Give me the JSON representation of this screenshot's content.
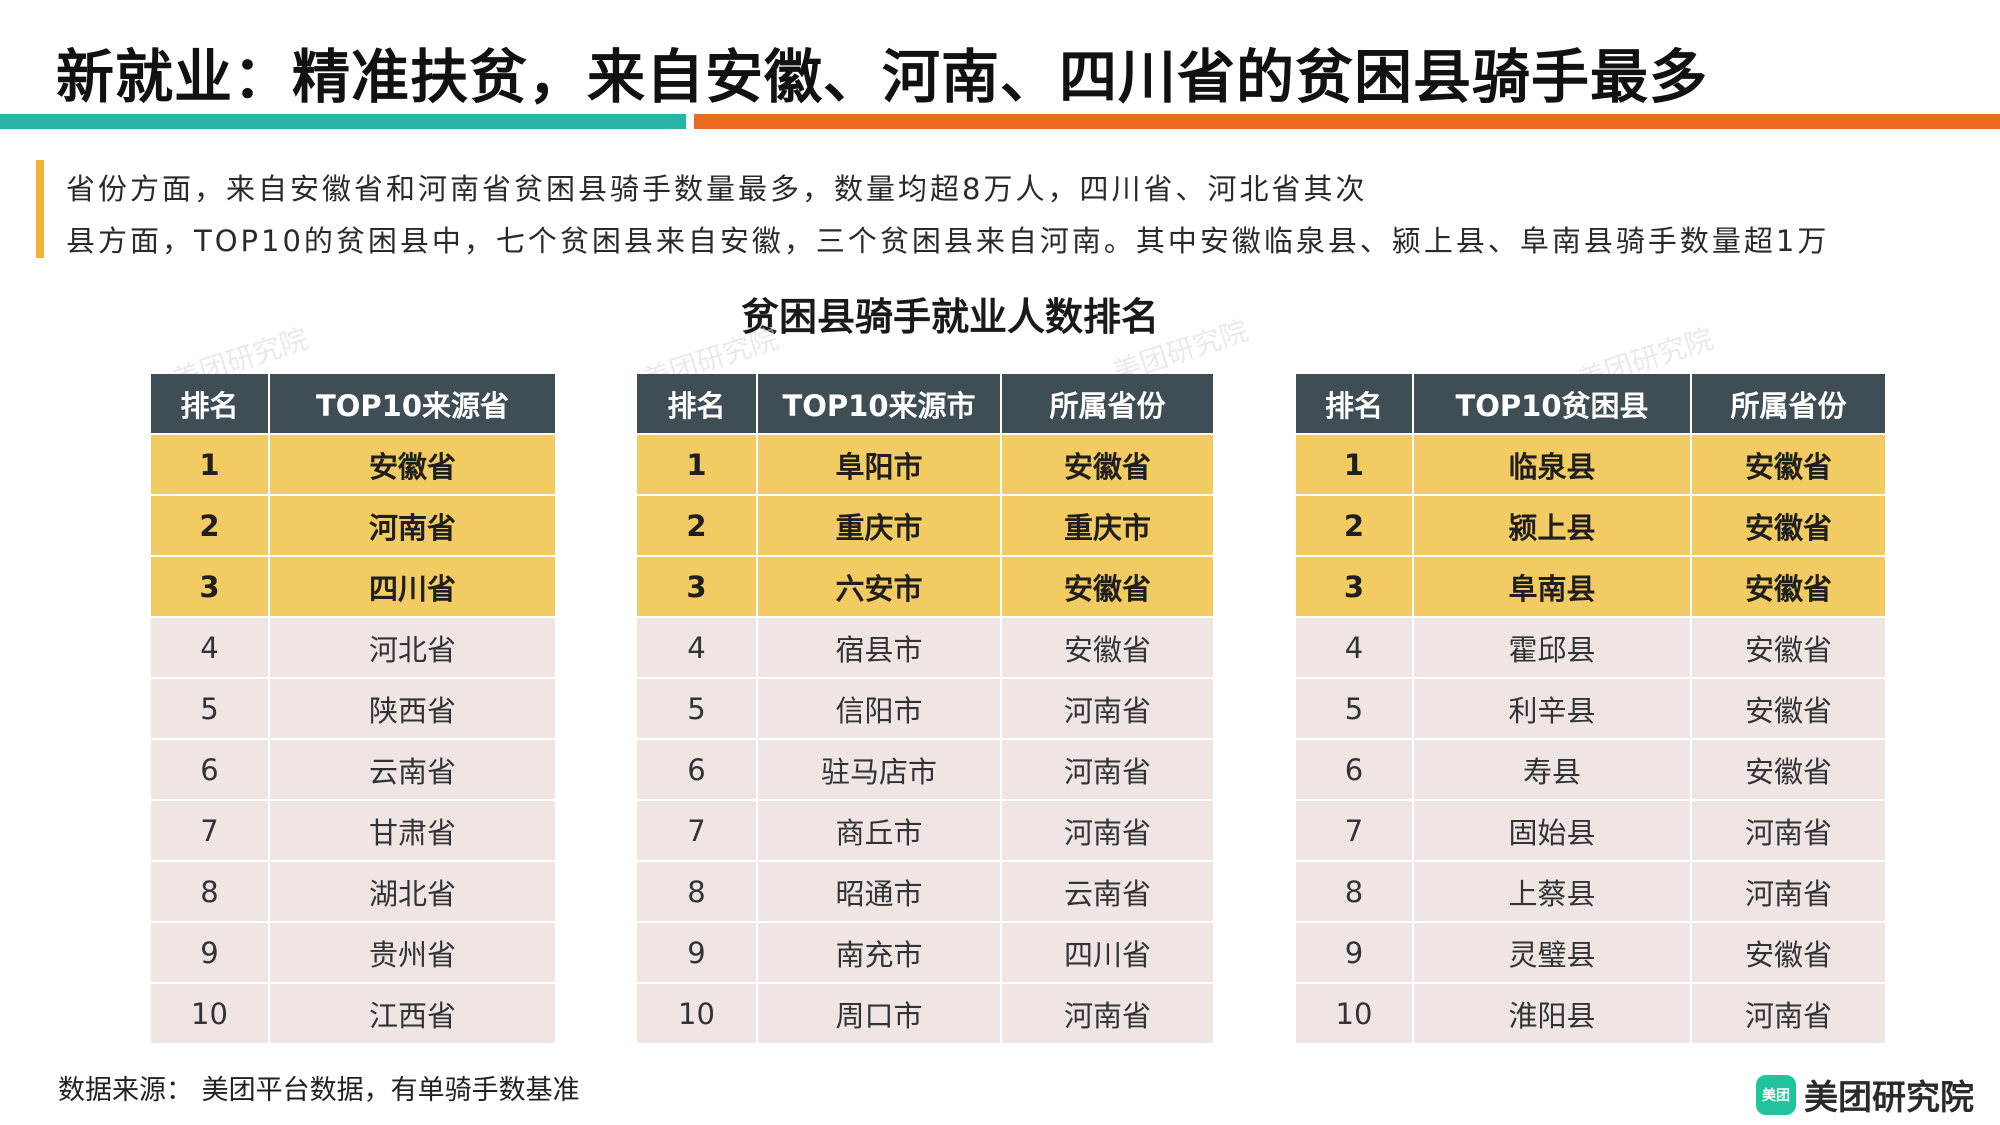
{
  "title": "新就业：精准扶贫，来自安徽、河南、四川省的贫困县骑手最多",
  "summary": {
    "line1": "省份方面，来自安徽省和河南省贫困县骑手数量最多，数量均超8万人，四川省、河北省其次",
    "line2": "县方面，TOP10的贫困县中，七个贫困县来自安徽，三个贫困县来自河南。其中安徽临泉县、颍上县、阜南县骑手数量超1万"
  },
  "section_title": "贫困县骑手就业人数排名",
  "watermark": "美团研究院",
  "table_provinces": {
    "headers": [
      "排名",
      "TOP10来源省"
    ],
    "rows": [
      [
        "1",
        "安徽省"
      ],
      [
        "2",
        "河南省"
      ],
      [
        "3",
        "四川省"
      ],
      [
        "4",
        "河北省"
      ],
      [
        "5",
        "陕西省"
      ],
      [
        "6",
        "云南省"
      ],
      [
        "7",
        "甘肃省"
      ],
      [
        "8",
        "湖北省"
      ],
      [
        "9",
        "贵州省"
      ],
      [
        "10",
        "江西省"
      ]
    ]
  },
  "table_cities": {
    "headers": [
      "排名",
      "TOP10来源市",
      "所属省份"
    ],
    "rows": [
      [
        "1",
        "阜阳市",
        "安徽省"
      ],
      [
        "2",
        "重庆市",
        "重庆市"
      ],
      [
        "3",
        "六安市",
        "安徽省"
      ],
      [
        "4",
        "宿县市",
        "安徽省"
      ],
      [
        "5",
        "信阳市",
        "河南省"
      ],
      [
        "6",
        "驻马店市",
        "河南省"
      ],
      [
        "7",
        "商丘市",
        "河南省"
      ],
      [
        "8",
        "昭通市",
        "云南省"
      ],
      [
        "9",
        "南充市",
        "四川省"
      ],
      [
        "10",
        "周口市",
        "河南省"
      ]
    ]
  },
  "table_counties": {
    "headers": [
      "排名",
      "TOP10贫困县",
      "所属省份"
    ],
    "rows": [
      [
        "1",
        "临泉县",
        "安徽省"
      ],
      [
        "2",
        "颍上县",
        "安徽省"
      ],
      [
        "3",
        "阜南县",
        "安徽省"
      ],
      [
        "4",
        "霍邱县",
        "安徽省"
      ],
      [
        "5",
        "利辛县",
        "安徽省"
      ],
      [
        "6",
        "寿县",
        "安徽省"
      ],
      [
        "7",
        "固始县",
        "河南省"
      ],
      [
        "8",
        "上蔡县",
        "河南省"
      ],
      [
        "9",
        "灵璧县",
        "安徽省"
      ],
      [
        "10",
        "淮阳县",
        "河南省"
      ]
    ]
  },
  "footer": "数据来源： 美团平台数据，有单骑手数基准",
  "logo": {
    "badge": "美团",
    "text": "美团研究院"
  },
  "colors": {
    "teal": "#2ab3a6",
    "orange": "#ec6b23",
    "header": "#3f4d54",
    "highlight": "#f3cb63",
    "row": "#efe6e4"
  }
}
